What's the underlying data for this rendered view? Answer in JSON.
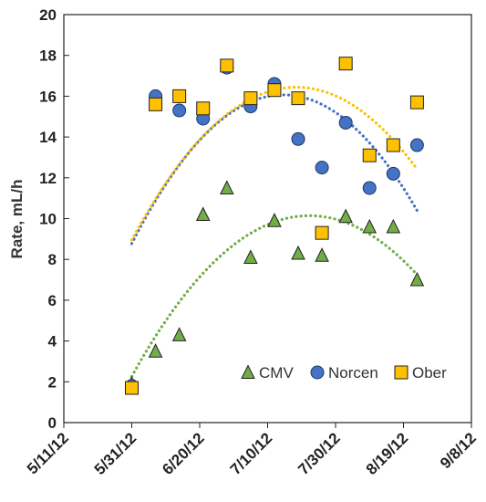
{
  "chart_data": {
    "type": "scatter",
    "title": "",
    "xlabel": "",
    "ylabel": "Rate, mL/h",
    "xlim": [
      "2012-05-11",
      "2012-09-08"
    ],
    "ylim": [
      0,
      20
    ],
    "y_ticks": [
      0,
      2,
      4,
      6,
      8,
      10,
      12,
      14,
      16,
      18,
      20
    ],
    "x_ticks": [
      "2012-05-11",
      "2012-05-31",
      "2012-06-20",
      "2012-07-10",
      "2012-07-30",
      "2012-08-19",
      "2012-09-08"
    ],
    "x_tick_labels": [
      "5/11/12",
      "5/31/12",
      "6/20/12",
      "7/10/12",
      "7/30/12",
      "8/19/12",
      "9/8/12"
    ],
    "grid": false,
    "legend_position": "bottom-right",
    "trendline_type": "polynomial (2nd order), dotted",
    "series": [
      {
        "name": "CMV",
        "marker": "triangle",
        "color": "#70ad47",
        "trend_color": "#70ad47",
        "points": [
          {
            "x": "2012-05-31",
            "y": 1.9
          },
          {
            "x": "2012-06-07",
            "y": 3.5
          },
          {
            "x": "2012-06-14",
            "y": 4.3
          },
          {
            "x": "2012-06-21",
            "y": 10.2
          },
          {
            "x": "2012-06-28",
            "y": 11.5
          },
          {
            "x": "2012-07-05",
            "y": 8.1
          },
          {
            "x": "2012-07-12",
            "y": 9.9
          },
          {
            "x": "2012-07-19",
            "y": 8.3
          },
          {
            "x": "2012-07-26",
            "y": 8.2
          },
          {
            "x": "2012-08-02",
            "y": 10.1
          },
          {
            "x": "2012-08-09",
            "y": 9.6
          },
          {
            "x": "2012-08-16",
            "y": 9.6
          },
          {
            "x": "2012-08-23",
            "y": 7.0
          }
        ]
      },
      {
        "name": "Norcen",
        "marker": "circle",
        "color": "#4472c4",
        "trend_color": "#4472c4",
        "points": [
          {
            "x": "2012-05-31",
            "y": 1.8
          },
          {
            "x": "2012-06-07",
            "y": 16.0
          },
          {
            "x": "2012-06-14",
            "y": 15.3
          },
          {
            "x": "2012-06-21",
            "y": 14.9
          },
          {
            "x": "2012-06-28",
            "y": 17.4
          },
          {
            "x": "2012-07-05",
            "y": 15.5
          },
          {
            "x": "2012-07-12",
            "y": 16.6
          },
          {
            "x": "2012-07-19",
            "y": 13.9
          },
          {
            "x": "2012-07-26",
            "y": 12.5
          },
          {
            "x": "2012-08-02",
            "y": 14.7
          },
          {
            "x": "2012-08-09",
            "y": 11.5
          },
          {
            "x": "2012-08-16",
            "y": 12.2
          },
          {
            "x": "2012-08-23",
            "y": 13.6
          }
        ]
      },
      {
        "name": "Ober",
        "marker": "square",
        "color": "#ffc000",
        "trend_color": "#ffc000",
        "points": [
          {
            "x": "2012-05-31",
            "y": 1.7
          },
          {
            "x": "2012-06-07",
            "y": 15.6
          },
          {
            "x": "2012-06-14",
            "y": 16.0
          },
          {
            "x": "2012-06-21",
            "y": 15.4
          },
          {
            "x": "2012-06-28",
            "y": 17.5
          },
          {
            "x": "2012-07-05",
            "y": 15.9
          },
          {
            "x": "2012-07-12",
            "y": 16.3
          },
          {
            "x": "2012-07-19",
            "y": 15.9
          },
          {
            "x": "2012-07-26",
            "y": 9.3
          },
          {
            "x": "2012-08-02",
            "y": 17.6
          },
          {
            "x": "2012-08-09",
            "y": 13.1
          },
          {
            "x": "2012-08-16",
            "y": 13.6
          },
          {
            "x": "2012-08-23",
            "y": 15.7
          }
        ]
      }
    ]
  }
}
